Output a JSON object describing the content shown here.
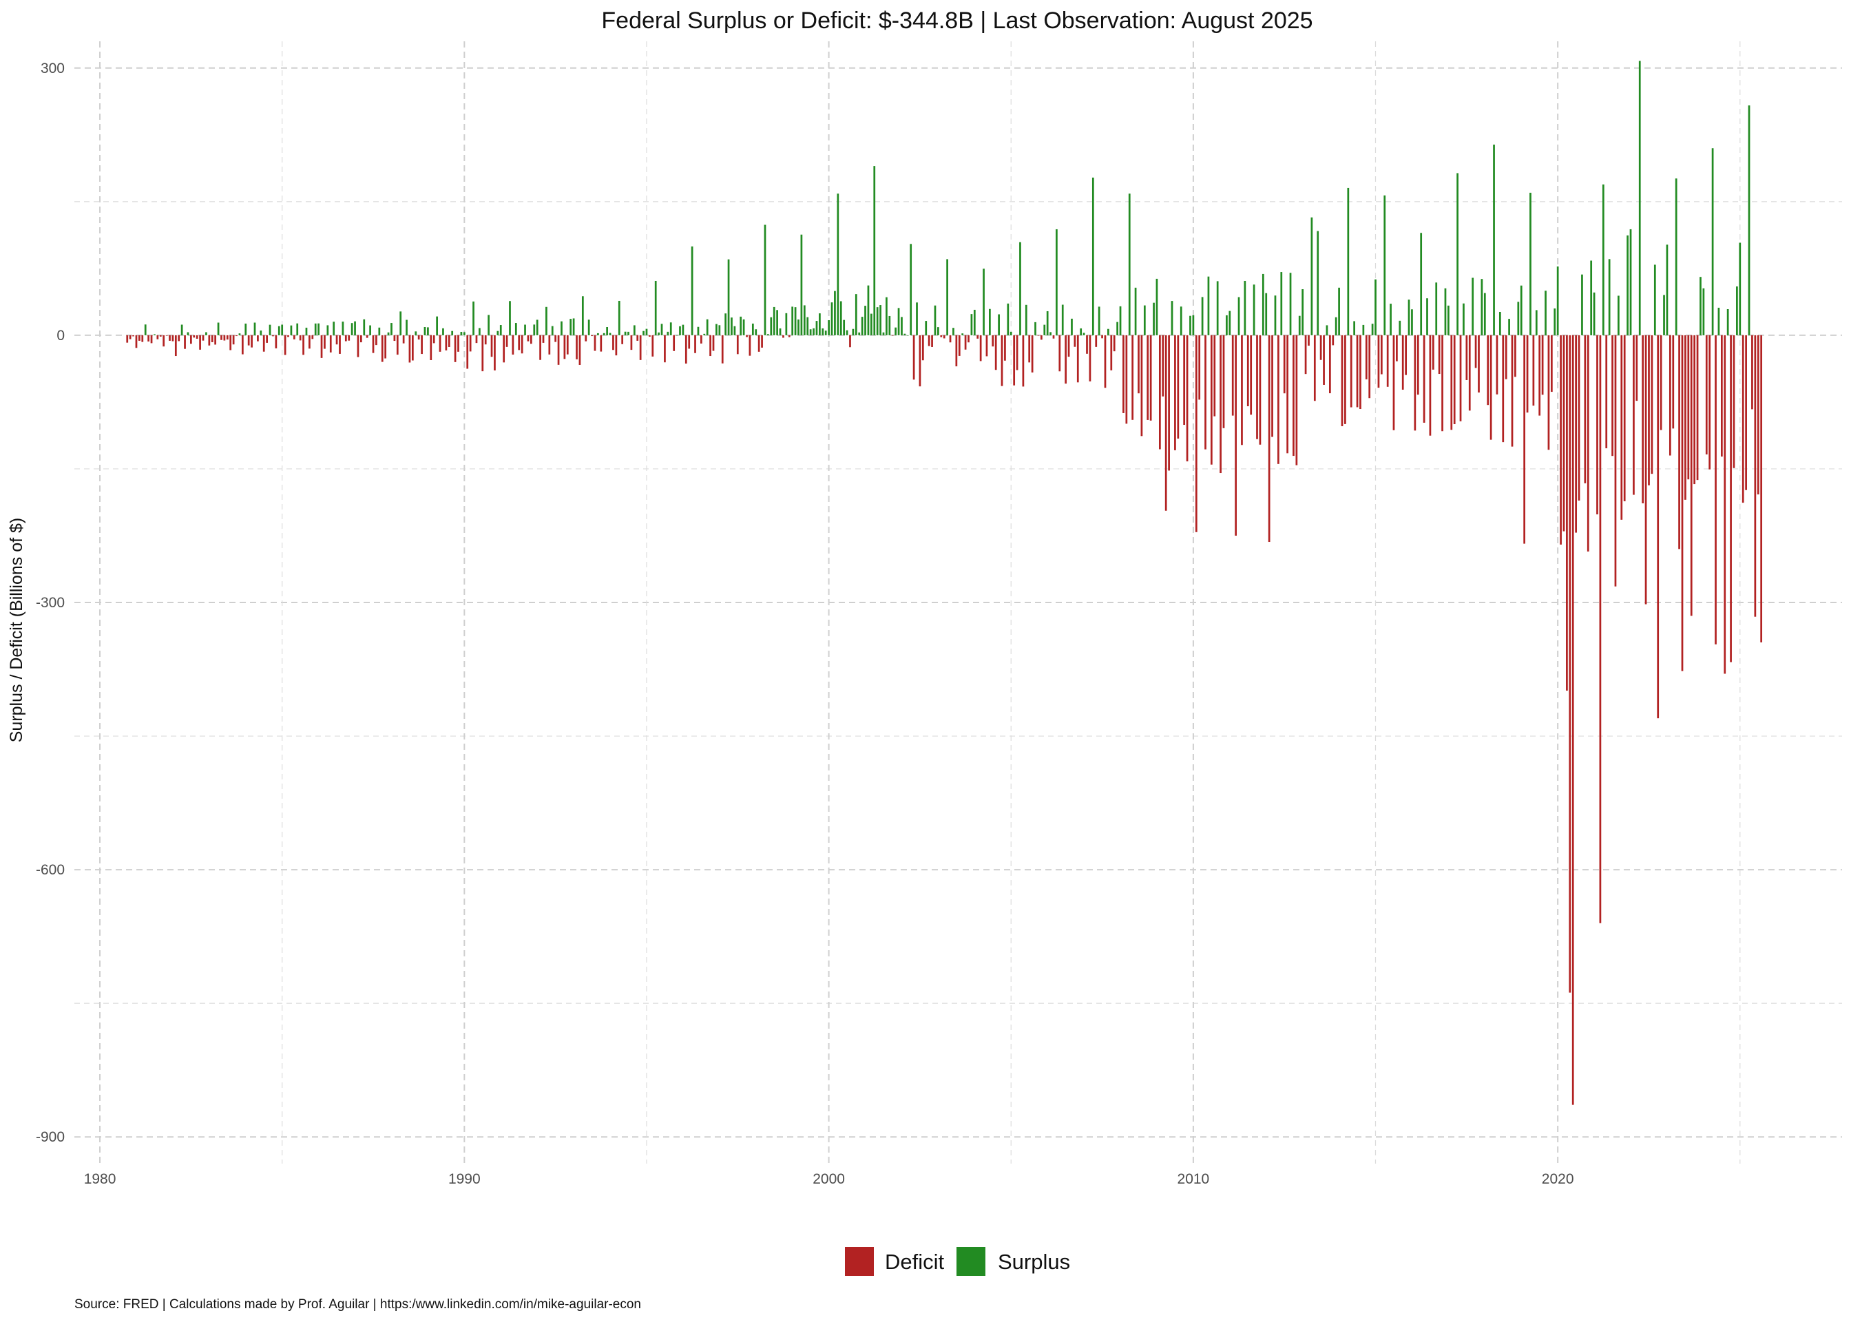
{
  "chart_data": {
    "type": "bar",
    "title": "Federal Surplus or Deficit: $-344.8B | Last Observation: August 2025",
    "xlabel": "",
    "ylabel": "Surplus / Deficit (Billions of $)",
    "caption": "Source: FRED | Calculations made by Prof. Aguilar | https:/www.linkedin.com/in/mike-aguilar-econ",
    "x_ticks": [
      "1980",
      "1990",
      "2000",
      "2010",
      "2020"
    ],
    "y_ticks": [
      "300",
      "0",
      "-300",
      "-600",
      "-900"
    ],
    "xlim": [
      1979.3,
      2027.8
    ],
    "ylim": [
      -930,
      330
    ],
    "grid": true,
    "legend": {
      "position": "bottom",
      "entries": [
        {
          "name": "Deficit",
          "color": "#b22222"
        },
        {
          "name": "Surplus",
          "color": "#228b22"
        }
      ]
    },
    "frequency": "monthly",
    "start": "1980-10",
    "end": "2025-08",
    "notable_values": [
      {
        "date": "2020-06",
        "value": -864
      },
      {
        "date": "2020-05",
        "value": -738
      },
      {
        "date": "2020-04",
        "value": -399
      },
      {
        "date": "2021-03",
        "value": -660
      },
      {
        "date": "2022-10",
        "value": -430
      },
      {
        "date": "2023-06",
        "value": -377
      },
      {
        "date": "2024-08",
        "value": -380
      },
      {
        "date": "2025-08",
        "value": -344.8
      },
      {
        "date": "2022-04",
        "value": 308
      },
      {
        "date": "2025-04",
        "value": 258
      },
      {
        "date": "2018-04",
        "value": 214
      },
      {
        "date": "2024-04",
        "value": 210
      },
      {
        "date": "2001-04",
        "value": 190
      },
      {
        "date": "2017-04",
        "value": 182
      },
      {
        "date": "2007-04",
        "value": 177
      },
      {
        "date": "2023-04",
        "value": 176
      },
      {
        "date": "2000-04",
        "value": 159
      },
      {
        "date": "2008-04",
        "value": 159
      },
      {
        "date": "2019-04",
        "value": 160
      },
      {
        "date": "2015-04",
        "value": 157
      },
      {
        "date": "1998-04",
        "value": 124
      },
      {
        "date": "2006-04",
        "value": 119
      },
      {
        "date": "2022-01",
        "value": 119
      },
      {
        "date": "2013-06",
        "value": 117
      },
      {
        "date": "1999-04",
        "value": 113
      },
      {
        "date": "2009-04",
        "value": -197
      },
      {
        "date": "2011-03",
        "value": -225
      },
      {
        "date": "2012-02",
        "value": -232
      },
      {
        "date": "2010-02",
        "value": -221
      },
      {
        "date": "2019-02",
        "value": -234
      },
      {
        "date": "2020-02",
        "value": -235
      },
      {
        "date": "2021-08",
        "value": -282
      },
      {
        "date": "2022-06",
        "value": -302
      },
      {
        "date": "2023-05",
        "value": -240
      },
      {
        "date": "2023-09",
        "value": -315
      },
      {
        "date": "2024-05",
        "value": -347
      },
      {
        "date": "2024-10",
        "value": -367
      },
      {
        "date": "2025-06",
        "value": -316
      }
    ]
  }
}
